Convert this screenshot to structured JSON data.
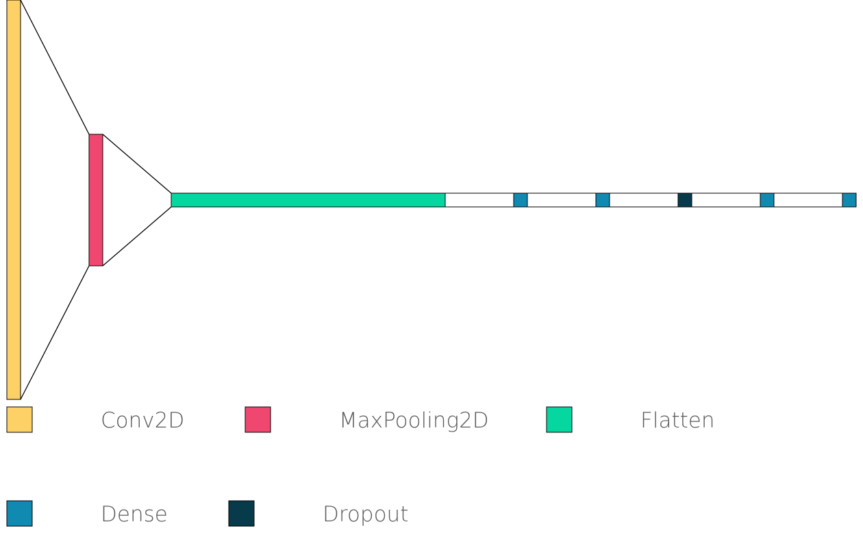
{
  "colors": {
    "Conv2D": "#fdd166",
    "MaxPooling2D": "#ef476f",
    "Flatten": "#06d6a0",
    "Dense": "#118ab2",
    "Dropout": "#073b4c",
    "connector": "#ffffff",
    "outline": "#000000"
  },
  "layer_sequence": [
    "Conv2D",
    "MaxPooling2D",
    "Flatten",
    "Dense",
    "Dense",
    "Dropout",
    "Dense",
    "Dense"
  ],
  "legend": [
    {
      "label": "Conv2D",
      "key": "Conv2D"
    },
    {
      "label": "MaxPooling2D",
      "key": "MaxPooling2D"
    },
    {
      "label": "Flatten",
      "key": "Flatten"
    },
    {
      "label": "Dense",
      "key": "Dense"
    },
    {
      "label": "Dropout",
      "key": "Dropout"
    }
  ]
}
